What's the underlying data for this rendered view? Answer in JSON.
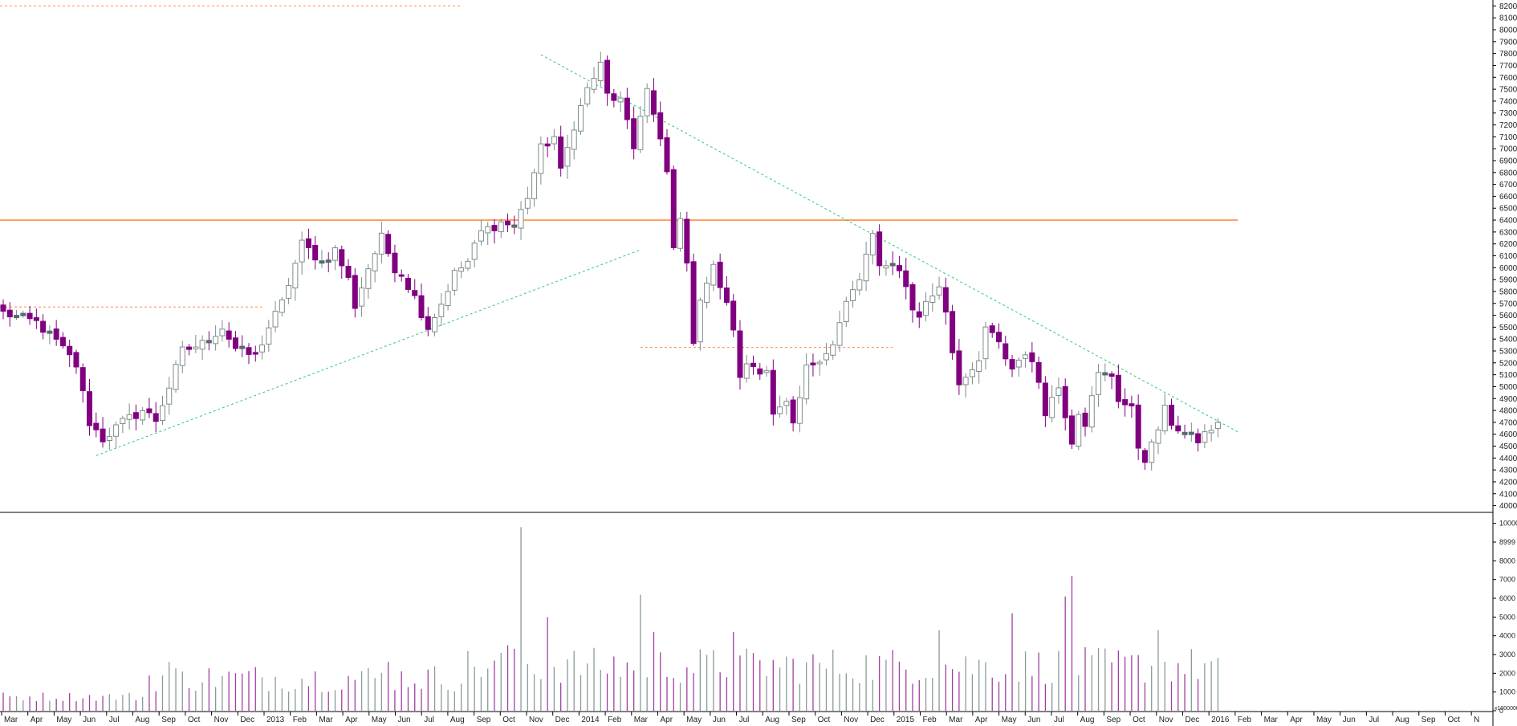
{
  "chart_data": {
    "type": "candlestick",
    "colors": {
      "up_fill": "#ffffff",
      "up_stroke": "#7f8c8c",
      "down_fill": "#800080",
      "doji": "#556b6b",
      "resistance": "#ff8c42",
      "trend": "#2ecc71",
      "volume_up": "#8a9a9a",
      "volume_down": "#a040a0"
    },
    "price_axis": {
      "min": 3950,
      "max": 8250,
      "ticks": [
        4000,
        4100,
        4200,
        4300,
        4400,
        4500,
        4600,
        4700,
        4800,
        4900,
        5000,
        5100,
        5200,
        5300,
        5400,
        5500,
        5600,
        5700,
        5800,
        5900,
        6000,
        6100,
        6200,
        6300,
        6400,
        6500,
        6600,
        6700,
        6800,
        6900,
        7000,
        7100,
        7200,
        7300,
        7400,
        7500,
        7600,
        7700,
        7800,
        7900,
        8000,
        8100,
        8200
      ]
    },
    "volume_axis": {
      "max": 10500,
      "ticks": [
        "10000",
        "8999",
        "8000",
        "7000",
        "6000",
        "5000",
        "4000",
        "3000",
        "2000",
        "1000",
        "0"
      ],
      "multiplier_label": "x1000000"
    },
    "month_labels": [
      "Mar",
      "Apr",
      "May",
      "Jun",
      "Jul",
      "Aug",
      "Sep",
      "Oct",
      "Nov",
      "Dec",
      "2013",
      "Feb",
      "Mar",
      "Apr",
      "May",
      "Jun",
      "Jul",
      "Aug",
      "Sep",
      "Oct",
      "Nov",
      "Dec",
      "2014",
      "Feb",
      "Mar",
      "Apr",
      "May",
      "Jun",
      "Jul",
      "Aug",
      "Sep",
      "Oct",
      "Nov",
      "Dec",
      "2015",
      "Feb",
      "Mar",
      "Apr",
      "May",
      "Jun",
      "Jul",
      "Aug",
      "Sep",
      "Oct",
      "Nov",
      "Dec",
      "2016",
      "Feb",
      "Mar",
      "Apr",
      "May",
      "Jun",
      "Jul",
      "Aug",
      "Sep",
      "Oct",
      "N"
    ],
    "close_anchors": [
      [
        0,
        5620
      ],
      [
        5,
        5540
      ],
      [
        8,
        5380
      ],
      [
        11,
        5180
      ],
      [
        13,
        4700
      ],
      [
        15,
        4560
      ],
      [
        18,
        4700
      ],
      [
        21,
        4800
      ],
      [
        23,
        4720
      ],
      [
        25,
        5000
      ],
      [
        27,
        5300
      ],
      [
        30,
        5360
      ],
      [
        33,
        5500
      ],
      [
        35,
        5320
      ],
      [
        38,
        5250
      ],
      [
        40,
        5500
      ],
      [
        42,
        5700
      ],
      [
        45,
        6200
      ],
      [
        48,
        6050
      ],
      [
        50,
        6150
      ],
      [
        52,
        5900
      ],
      [
        53,
        5680
      ],
      [
        55,
        6000
      ],
      [
        57,
        6250
      ],
      [
        59,
        6000
      ],
      [
        60,
        5950
      ],
      [
        62,
        5750
      ],
      [
        64,
        5500
      ],
      [
        66,
        5700
      ],
      [
        68,
        5950
      ],
      [
        70,
        6050
      ],
      [
        72,
        6300
      ],
      [
        75,
        6380
      ],
      [
        77,
        6350
      ],
      [
        79,
        6600
      ],
      [
        81,
        7000
      ],
      [
        83,
        7100
      ],
      [
        84,
        6800
      ],
      [
        86,
        7200
      ],
      [
        88,
        7500
      ],
      [
        90,
        7700
      ],
      [
        91,
        7450
      ],
      [
        93,
        7400
      ],
      [
        95,
        7000
      ],
      [
        96,
        7300
      ],
      [
        97,
        7500
      ],
      [
        99,
        7050
      ],
      [
        100,
        6800
      ],
      [
        101,
        6150
      ],
      [
        102,
        6450
      ],
      [
        103,
        6000
      ],
      [
        104,
        5400
      ],
      [
        105,
        5750
      ],
      [
        107,
        6000
      ],
      [
        108,
        5850
      ],
      [
        110,
        5500
      ],
      [
        111,
        5050
      ],
      [
        112,
        5200
      ],
      [
        114,
        5150
      ],
      [
        115,
        5150
      ],
      [
        116,
        4750
      ],
      [
        118,
        4850
      ],
      [
        119,
        4650
      ],
      [
        121,
        5150
      ],
      [
        123,
        5250
      ],
      [
        125,
        5350
      ],
      [
        127,
        5700
      ],
      [
        129,
        5900
      ],
      [
        130,
        6100
      ],
      [
        131,
        6250
      ],
      [
        132,
        6000
      ],
      [
        133,
        6050
      ],
      [
        135,
        6000
      ],
      [
        137,
        5650
      ],
      [
        138,
        5600
      ],
      [
        139,
        5700
      ],
      [
        141,
        5850
      ],
      [
        142,
        5650
      ],
      [
        143,
        5300
      ],
      [
        144,
        5050
      ],
      [
        146,
        5100
      ],
      [
        147,
        5200
      ],
      [
        148,
        5500
      ],
      [
        150,
        5350
      ],
      [
        152,
        5150
      ],
      [
        154,
        5300
      ],
      [
        156,
        5050
      ],
      [
        157,
        4800
      ],
      [
        158,
        4900
      ],
      [
        159,
        5000
      ],
      [
        161,
        4550
      ],
      [
        162,
        4800
      ],
      [
        163,
        4700
      ],
      [
        165,
        5100
      ],
      [
        167,
        5100
      ],
      [
        168,
        4900
      ],
      [
        170,
        4800
      ],
      [
        171,
        4500
      ],
      [
        172,
        4400
      ],
      [
        173,
        4500
      ],
      [
        175,
        4800
      ],
      [
        176,
        4700
      ],
      [
        178,
        4600
      ],
      [
        180,
        4550
      ],
      [
        182,
        4650
      ],
      [
        183,
        4700
      ]
    ],
    "resistance_lines": [
      {
        "price": 6400,
        "from_week": -3,
        "to_week": 186,
        "style": "solid"
      },
      {
        "price": 8200,
        "from_week": -3,
        "to_week": 69,
        "style": "dashed"
      },
      {
        "price": 5670,
        "from_week": -3,
        "to_week": 39,
        "style": "dashed"
      },
      {
        "price": 5330,
        "from_week": 96,
        "to_week": 134,
        "style": "dashed"
      }
    ],
    "trendlines": [
      {
        "from": [
          14,
          4420
        ],
        "to": [
          96,
          6150
        ]
      },
      {
        "from": [
          81,
          7790
        ],
        "to": [
          186,
          4620
        ]
      }
    ]
  }
}
